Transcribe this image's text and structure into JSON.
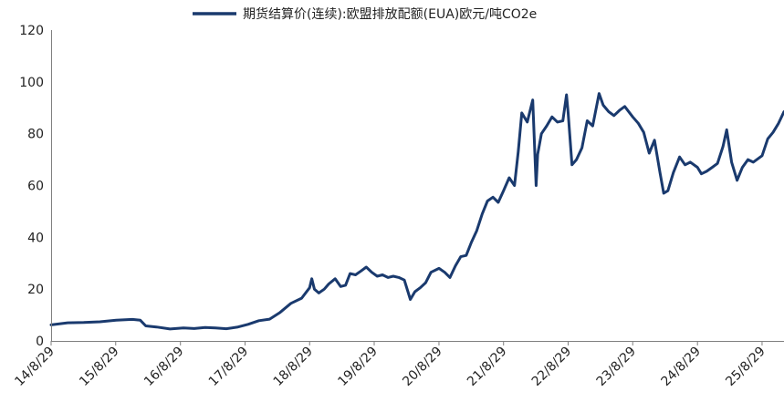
{
  "chart_data": {
    "type": "line",
    "title": "",
    "xlabel": "",
    "ylabel": "",
    "legend": {
      "placement": "top-center"
    },
    "grid": false,
    "series_color": "#1a3a6e",
    "xlim": [
      "2014-08-29",
      "2025-12-31"
    ],
    "ylim": [
      0,
      120
    ],
    "yticks": [
      0,
      20,
      40,
      60,
      80,
      100,
      120
    ],
    "ytick_labels": [
      "0",
      "20",
      "40",
      "60",
      "80",
      "100",
      "120"
    ],
    "xticks": [
      "2014-08-29",
      "2015-08-29",
      "2016-08-29",
      "2017-08-29",
      "2018-08-29",
      "2019-08-29",
      "2020-08-29",
      "2021-08-29",
      "2022-08-29",
      "2023-08-29",
      "2024-08-29",
      "2025-08-29"
    ],
    "xtick_labels": [
      "14/8/29",
      "15/8/29",
      "16/8/29",
      "17/8/29",
      "18/8/29",
      "19/8/29",
      "20/8/29",
      "21/8/29",
      "22/8/29",
      "23/8/29",
      "24/8/29",
      "25/8/29"
    ],
    "series": [
      {
        "name": "期货结算价(连续):欧盟排放配额(EUA)欧元/吨CO2e",
        "x": [
          "2014-08-29",
          "2014-12-01",
          "2015-03-01",
          "2015-06-01",
          "2015-09-01",
          "2015-12-01",
          "2016-01-15",
          "2016-02-15",
          "2016-04-15",
          "2016-07-01",
          "2016-09-15",
          "2016-11-15",
          "2017-01-15",
          "2017-03-15",
          "2017-05-15",
          "2017-07-15",
          "2017-09-15",
          "2017-11-15",
          "2018-01-15",
          "2018-03-15",
          "2018-05-15",
          "2018-07-15",
          "2018-08-29",
          "2018-09-10",
          "2018-09-25",
          "2018-10-20",
          "2018-11-20",
          "2018-12-15",
          "2019-01-20",
          "2019-02-20",
          "2019-03-20",
          "2019-04-15",
          "2019-05-15",
          "2019-06-15",
          "2019-07-15",
          "2019-08-15",
          "2019-09-15",
          "2019-10-15",
          "2019-11-15",
          "2019-12-15",
          "2020-01-15",
          "2020-02-15",
          "2020-03-20",
          "2020-04-15",
          "2020-05-15",
          "2020-06-15",
          "2020-07-15",
          "2020-08-29",
          "2020-09-30",
          "2020-10-30",
          "2020-11-30",
          "2020-12-30",
          "2021-01-30",
          "2021-02-28",
          "2021-03-30",
          "2021-04-30",
          "2021-05-30",
          "2021-06-30",
          "2021-07-30",
          "2021-08-29",
          "2021-09-30",
          "2021-10-30",
          "2021-11-20",
          "2021-12-10",
          "2022-01-10",
          "2022-02-10",
          "2022-03-01",
          "2022-03-10",
          "2022-03-31",
          "2022-04-30",
          "2022-05-30",
          "2022-06-30",
          "2022-07-30",
          "2022-08-20",
          "2022-08-29",
          "2022-09-20",
          "2022-10-15",
          "2022-11-15",
          "2022-12-15",
          "2023-01-15",
          "2023-02-20",
          "2023-03-15",
          "2023-04-15",
          "2023-05-15",
          "2023-06-15",
          "2023-07-15",
          "2023-08-29",
          "2023-09-30",
          "2023-10-30",
          "2023-11-30",
          "2023-12-30",
          "2024-01-30",
          "2024-02-20",
          "2024-03-15",
          "2024-04-15",
          "2024-05-20",
          "2024-06-20",
          "2024-07-20",
          "2024-08-29",
          "2024-09-20",
          "2024-10-20",
          "2024-11-20",
          "2024-12-20",
          "2025-01-20",
          "2025-02-10",
          "2025-03-10",
          "2025-04-10",
          "2025-05-10",
          "2025-06-10",
          "2025-07-10",
          "2025-08-29",
          "2025-09-30",
          "2025-10-30",
          "2025-11-30",
          "2025-12-31"
        ],
        "values": [
          6.2,
          7.0,
          7.1,
          7.4,
          8.0,
          8.3,
          8.0,
          5.8,
          5.4,
          4.6,
          5.0,
          4.8,
          5.2,
          5.0,
          4.7,
          5.3,
          6.4,
          7.8,
          8.4,
          11.0,
          14.5,
          16.5,
          20.5,
          24.0,
          20.0,
          18.5,
          20.0,
          22.0,
          24.0,
          21.0,
          21.5,
          26.0,
          25.5,
          27.0,
          28.5,
          26.5,
          25.0,
          25.5,
          24.5,
          25.0,
          24.5,
          23.5,
          16.0,
          19.0,
          20.5,
          22.5,
          26.5,
          28.0,
          26.5,
          24.5,
          29.0,
          32.5,
          33.0,
          38.0,
          42.5,
          49.0,
          54.0,
          55.5,
          53.5,
          58.0,
          63.0,
          60.0,
          73.0,
          88.0,
          84.5,
          93.0,
          60.0,
          72.0,
          80.0,
          83.0,
          86.5,
          84.5,
          85.0,
          95.0,
          88.0,
          68.0,
          70.0,
          74.5,
          85.0,
          83.0,
          95.5,
          91.0,
          88.5,
          87.0,
          89.0,
          90.5,
          86.5,
          84.0,
          80.5,
          72.5,
          77.5,
          65.0,
          57.0,
          58.0,
          65.0,
          71.0,
          68.0,
          69.0,
          67.0,
          64.5,
          65.5,
          67.0,
          68.5,
          75.0,
          81.5,
          69.0,
          62.0,
          67.0,
          70.0,
          69.0,
          71.5,
          78.0,
          80.5,
          84.0,
          88.5
        ]
      }
    ]
  }
}
